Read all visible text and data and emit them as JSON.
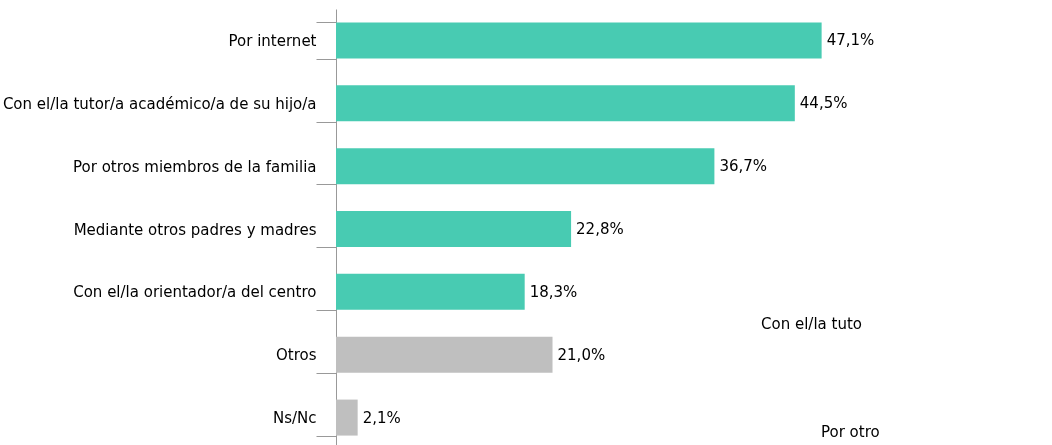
{
  "chart_data": {
    "type": "bar",
    "orientation": "horizontal",
    "data_labels": true,
    "categories": [
      "Por internet",
      "Con el/la tutor/a académico/a de su hijo/a",
      "Por otros miembros de la familia",
      "Mediante otros padres y madres",
      "Con el/la orientador/a del centro",
      "Otros",
      "Ns/Nc"
    ],
    "values": [
      47.1,
      44.5,
      36.7,
      22.8,
      18.3,
      21.0,
      2.1
    ],
    "value_labels": [
      "47,1%",
      "44,5%",
      "36,7%",
      "22,8%",
      "18,3%",
      "21,0%",
      "2,1%"
    ],
    "colors": [
      "#48cbb2",
      "#48cbb2",
      "#48cbb2",
      "#48cbb2",
      "#48cbb2",
      "#bfbfbf",
      "#bfbfbf"
    ],
    "annotations": [
      "Con el/la tuto",
      "Por otro"
    ]
  }
}
